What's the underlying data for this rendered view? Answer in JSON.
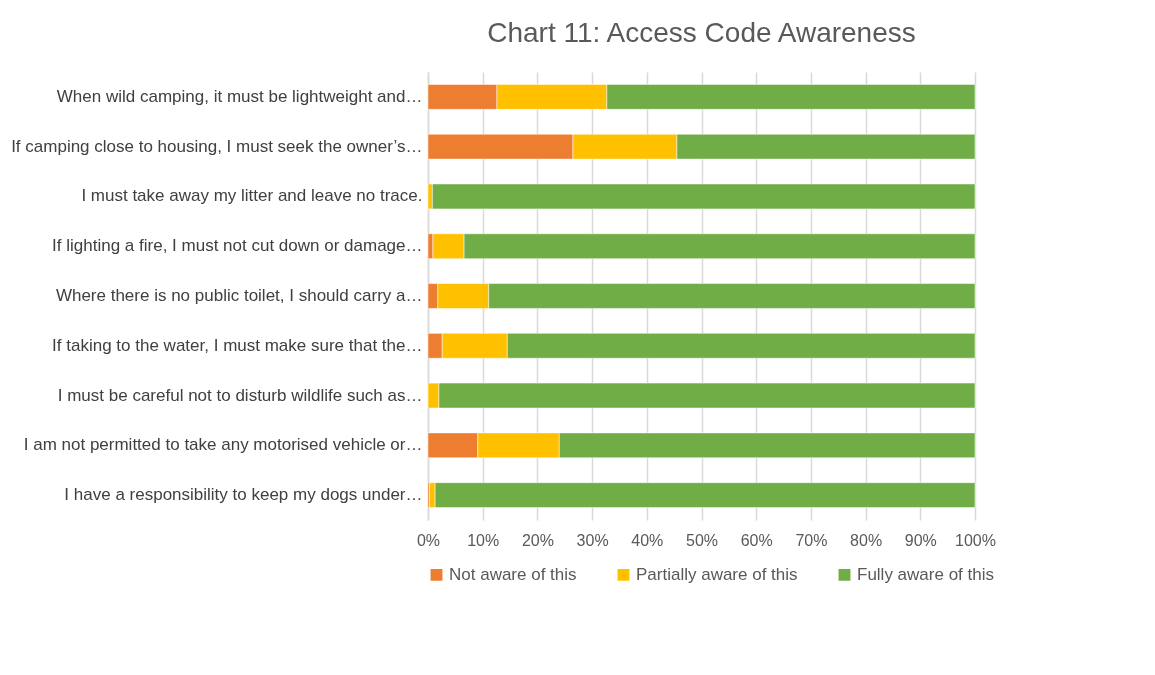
{
  "chart_data": {
    "type": "bar",
    "orientation": "horizontal",
    "stacked": true,
    "title": "Chart 11: Access Code Awareness",
    "categories": [
      "When wild camping, it must be lightweight and…",
      "If camping close to housing, I must seek the owner’s…",
      "I must take away my litter and leave no trace.",
      "If lighting a fire, I must not cut down or damage…",
      "Where there is no public toilet, I should carry a…",
      "If taking to the water, I must make sure that the…",
      "I must be careful not to disturb wildlife such as…",
      "I am not permitted to take any motorised vehicle or…",
      "I have a responsibility to keep my dogs under…"
    ],
    "series": [
      {
        "name": "Not aware of this",
        "color": "#ed7d31",
        "values": [
          12.6,
          26.5,
          0,
          0.9,
          1.8,
          2.6,
          0,
          9.1,
          0.3
        ]
      },
      {
        "name": "Partially aware of this",
        "color": "#ffc000",
        "values": [
          20.1,
          19,
          0.8,
          5.7,
          9.3,
          11.9,
          2,
          14.9,
          1
        ]
      },
      {
        "name": "Fully aware of this",
        "color": "#70ad47",
        "values": [
          67.3,
          54.5,
          99.2,
          93.4,
          88.9,
          85.5,
          98,
          76,
          98.7
        ]
      }
    ],
    "xlim": [
      0,
      100
    ],
    "xticks": [
      {
        "value": 0,
        "label": "0%"
      },
      {
        "value": 10,
        "label": "10%"
      },
      {
        "value": 20,
        "label": "20%"
      },
      {
        "value": 30,
        "label": "30%"
      },
      {
        "value": 40,
        "label": "40%"
      },
      {
        "value": 50,
        "label": "50%"
      },
      {
        "value": 60,
        "label": "60%"
      },
      {
        "value": 70,
        "label": "70%"
      },
      {
        "value": 80,
        "label": "80%"
      },
      {
        "value": 90,
        "label": "90%"
      },
      {
        "value": 100,
        "label": "100%"
      }
    ],
    "grid": "x",
    "legend": "bottom"
  }
}
